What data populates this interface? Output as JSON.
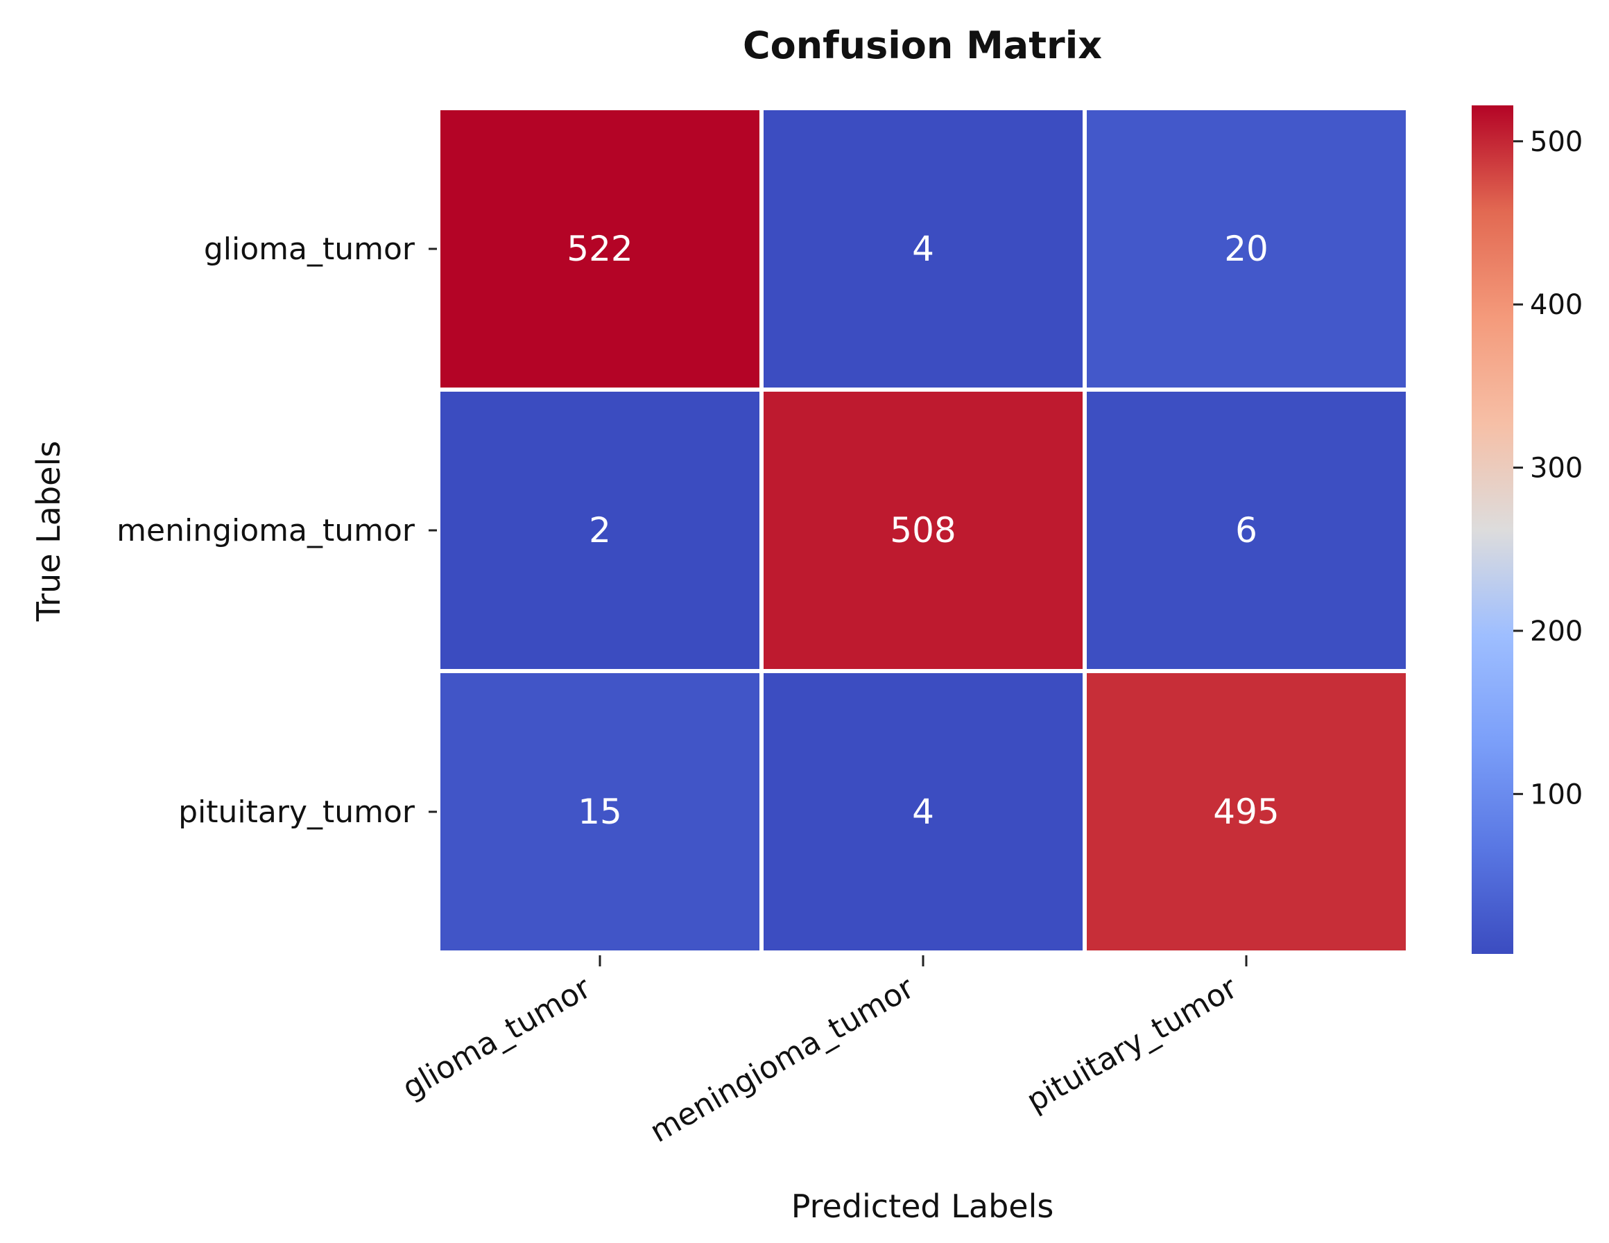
{
  "chart_data": {
    "type": "heatmap",
    "title": "Confusion Matrix",
    "xlabel": "Predicted Labels",
    "ylabel": "True Labels",
    "x_categories": [
      "glioma_tumor",
      "meningioma_tumor",
      "pituitary_tumor"
    ],
    "y_categories": [
      "glioma_tumor",
      "meningioma_tumor",
      "pituitary_tumor"
    ],
    "values": [
      [
        522,
        4,
        20
      ],
      [
        2,
        508,
        6
      ],
      [
        15,
        4,
        495
      ]
    ],
    "colormap": "coolwarm",
    "colorbar": {
      "min": 2,
      "max": 522,
      "ticks": [
        100,
        200,
        300,
        400,
        500
      ]
    },
    "annotations": true,
    "grid": false
  }
}
